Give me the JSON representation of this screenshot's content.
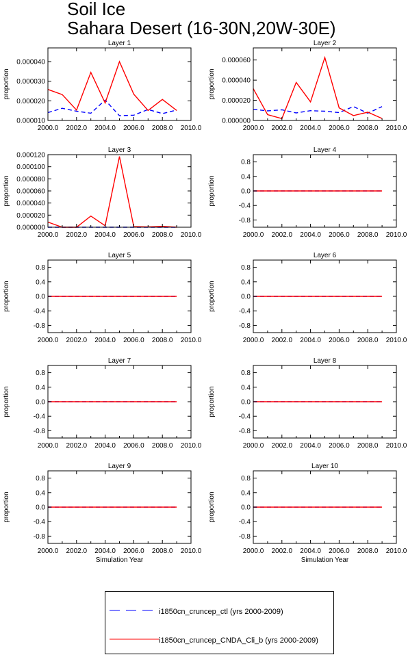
{
  "title_line1": "Soil Ice",
  "title_line2": "Sahara Desert (16-30N,20W-30E)",
  "x_label": "Simulation Year",
  "y_label": "proportion",
  "legend": [
    {
      "label": "i1850cn_cruncep_ctl (yrs 2000-2009)",
      "color": "#0000ff",
      "dash": "dashed"
    },
    {
      "label": "i1850cn_cruncep_CNDA_Cli_b (yrs 2000-2009)",
      "color": "#ff0000",
      "dash": "solid"
    }
  ],
  "chart_data": [
    {
      "type": "line",
      "title": "Layer 1",
      "x": [
        2000,
        2001,
        2002,
        2003,
        2004,
        2005,
        2006,
        2007,
        2008,
        2009
      ],
      "xlim": [
        2000,
        2010
      ],
      "xticks": [
        2000,
        2002,
        2004,
        2006,
        2008,
        2010
      ],
      "xtick_labels": [
        "2000.0",
        "2002.0",
        "2004.0",
        "2006.0",
        "2008.0",
        "2010.0"
      ],
      "ylim": [
        1e-05,
        4.7e-05
      ],
      "yticks": [
        1e-05,
        2e-05,
        3e-05,
        4e-05
      ],
      "ytick_labels": [
        "0.000010",
        "0.000020",
        "0.000030",
        "0.000040"
      ],
      "xlabel": "",
      "ylabel": "proportion",
      "series": [
        {
          "values": [
            1.4e-05,
            1.62e-05,
            1.47e-05,
            1.37e-05,
            2.04e-05,
            1.24e-05,
            1.27e-05,
            1.56e-05,
            1.35e-05,
            1.53e-05
          ]
        },
        {
          "values": [
            2.58e-05,
            2.32e-05,
            1.53e-05,
            3.45e-05,
            1.89e-05,
            4e-05,
            2.34e-05,
            1.51e-05,
            2.07e-05,
            1.51e-05
          ]
        }
      ]
    },
    {
      "type": "line",
      "title": "Layer 2",
      "x": [
        2000,
        2001,
        2002,
        2003,
        2004,
        2005,
        2006,
        2007,
        2008,
        2009
      ],
      "xlim": [
        2000,
        2010
      ],
      "xticks": [
        2000,
        2002,
        2004,
        2006,
        2008,
        2010
      ],
      "xtick_labels": [
        "2000.0",
        "2002.0",
        "2004.0",
        "2006.0",
        "2008.0",
        "2010.0"
      ],
      "ylim": [
        0,
        7.2e-05
      ],
      "yticks": [
        0,
        2e-05,
        4e-05,
        6e-05
      ],
      "ytick_labels": [
        "0.000000",
        "0.000020",
        "0.000040",
        "0.000060"
      ],
      "xlabel": "",
      "ylabel": "proportion",
      "series": [
        {
          "values": [
            1.1e-05,
            9.5e-06,
            1.05e-05,
            7.5e-06,
            9.7e-06,
            9.2e-06,
            7.8e-06,
            1.38e-05,
            7.2e-06,
            1.38e-05
          ]
        },
        {
          "values": [
            3.15e-05,
            5.8e-06,
            1.8e-06,
            3.78e-05,
            1.85e-05,
            6.25e-05,
            1.25e-05,
            4.8e-06,
            8.2e-06,
            2e-06
          ]
        }
      ]
    },
    {
      "type": "line",
      "title": "Layer 3",
      "x": [
        2000,
        2001,
        2002,
        2003,
        2004,
        2005,
        2006,
        2007,
        2008,
        2009
      ],
      "xlim": [
        2000,
        2010
      ],
      "xticks": [
        2000,
        2002,
        2004,
        2006,
        2008,
        2010
      ],
      "xtick_labels": [
        "2000.0",
        "2002.0",
        "2004.0",
        "2006.0",
        "2008.0",
        "2010.0"
      ],
      "ylim": [
        0,
        0.00012
      ],
      "yticks": [
        0,
        2e-05,
        4e-05,
        6e-05,
        8e-05,
        0.0001,
        0.00012
      ],
      "ytick_labels": [
        "0.000000",
        "0.000020",
        "0.000040",
        "0.000060",
        "0.000080",
        "0.000100",
        "0.000120"
      ],
      "xlabel": "",
      "ylabel": "proportion",
      "series": [
        {
          "values": [
            0,
            0,
            0,
            0,
            0,
            0,
            0,
            0,
            0,
            0
          ]
        },
        {
          "values": [
            8.5e-06,
            0,
            0,
            1.85e-05,
            2.5e-06,
            0.000117,
            1e-06,
            5e-07,
            1.5e-06,
            0
          ]
        }
      ]
    },
    {
      "type": "line",
      "title": "Layer 4",
      "x": [
        2000,
        2001,
        2002,
        2003,
        2004,
        2005,
        2006,
        2007,
        2008,
        2009
      ],
      "xlim": [
        2000,
        2010
      ],
      "xticks": [
        2000,
        2002,
        2004,
        2006,
        2008,
        2010
      ],
      "xtick_labels": [
        "2000.0",
        "2002.0",
        "2004.0",
        "2006.0",
        "2008.0",
        "2010.0"
      ],
      "ylim": [
        -1,
        1
      ],
      "yticks": [
        -0.8,
        -0.4,
        0,
        0.4,
        0.8
      ],
      "ytick_labels": [
        "-0.8",
        "-0.4",
        "0.0",
        "0.4",
        "0.8"
      ],
      "xlabel": "",
      "ylabel": "proportion",
      "series": [
        {
          "values": [
            0,
            0,
            0,
            0,
            0,
            0,
            0,
            0,
            0,
            0
          ]
        },
        {
          "values": [
            0,
            0,
            0,
            0,
            0,
            0,
            0,
            0,
            0,
            0
          ]
        }
      ]
    },
    {
      "type": "line",
      "title": "Layer 5",
      "x": [
        2000,
        2001,
        2002,
        2003,
        2004,
        2005,
        2006,
        2007,
        2008,
        2009
      ],
      "xlim": [
        2000,
        2010
      ],
      "xticks": [
        2000,
        2002,
        2004,
        2006,
        2008,
        2010
      ],
      "xtick_labels": [
        "2000.0",
        "2002.0",
        "2004.0",
        "2006.0",
        "2008.0",
        "2010.0"
      ],
      "ylim": [
        -1,
        1
      ],
      "yticks": [
        -0.8,
        -0.4,
        0,
        0.4,
        0.8
      ],
      "ytick_labels": [
        "-0.8",
        "-0.4",
        "0.0",
        "0.4",
        "0.8"
      ],
      "xlabel": "",
      "ylabel": "proportion",
      "series": [
        {
          "values": [
            0,
            0,
            0,
            0,
            0,
            0,
            0,
            0,
            0,
            0
          ]
        },
        {
          "values": [
            0,
            0,
            0,
            0,
            0,
            0,
            0,
            0,
            0,
            0
          ]
        }
      ]
    },
    {
      "type": "line",
      "title": "Layer 6",
      "x": [
        2000,
        2001,
        2002,
        2003,
        2004,
        2005,
        2006,
        2007,
        2008,
        2009
      ],
      "xlim": [
        2000,
        2010
      ],
      "xticks": [
        2000,
        2002,
        2004,
        2006,
        2008,
        2010
      ],
      "xtick_labels": [
        "2000.0",
        "2002.0",
        "2004.0",
        "2006.0",
        "2008.0",
        "2010.0"
      ],
      "ylim": [
        -1,
        1
      ],
      "yticks": [
        -0.8,
        -0.4,
        0,
        0.4,
        0.8
      ],
      "ytick_labels": [
        "-0.8",
        "-0.4",
        "0.0",
        "0.4",
        "0.8"
      ],
      "xlabel": "",
      "ylabel": "proportion",
      "series": [
        {
          "values": [
            0,
            0,
            0,
            0,
            0,
            0,
            0,
            0,
            0,
            0
          ]
        },
        {
          "values": [
            0,
            0,
            0,
            0,
            0,
            0,
            0,
            0,
            0,
            0
          ]
        }
      ]
    },
    {
      "type": "line",
      "title": "Layer 7",
      "x": [
        2000,
        2001,
        2002,
        2003,
        2004,
        2005,
        2006,
        2007,
        2008,
        2009
      ],
      "xlim": [
        2000,
        2010
      ],
      "xticks": [
        2000,
        2002,
        2004,
        2006,
        2008,
        2010
      ],
      "xtick_labels": [
        "2000.0",
        "2002.0",
        "2004.0",
        "2006.0",
        "2008.0",
        "2010.0"
      ],
      "ylim": [
        -1,
        1
      ],
      "yticks": [
        -0.8,
        -0.4,
        0,
        0.4,
        0.8
      ],
      "ytick_labels": [
        "-0.8",
        "-0.4",
        "0.0",
        "0.4",
        "0.8"
      ],
      "xlabel": "",
      "ylabel": "proportion",
      "series": [
        {
          "values": [
            0,
            0,
            0,
            0,
            0,
            0,
            0,
            0,
            0,
            0
          ]
        },
        {
          "values": [
            0,
            0,
            0,
            0,
            0,
            0,
            0,
            0,
            0,
            0
          ]
        }
      ]
    },
    {
      "type": "line",
      "title": "Layer 8",
      "x": [
        2000,
        2001,
        2002,
        2003,
        2004,
        2005,
        2006,
        2007,
        2008,
        2009
      ],
      "xlim": [
        2000,
        2010
      ],
      "xticks": [
        2000,
        2002,
        2004,
        2006,
        2008,
        2010
      ],
      "xtick_labels": [
        "2000.0",
        "2002.0",
        "2004.0",
        "2006.0",
        "2008.0",
        "2010.0"
      ],
      "ylim": [
        -1,
        1
      ],
      "yticks": [
        -0.8,
        -0.4,
        0,
        0.4,
        0.8
      ],
      "ytick_labels": [
        "-0.8",
        "-0.4",
        "0.0",
        "0.4",
        "0.8"
      ],
      "xlabel": "",
      "ylabel": "proportion",
      "series": [
        {
          "values": [
            0,
            0,
            0,
            0,
            0,
            0,
            0,
            0,
            0,
            0
          ]
        },
        {
          "values": [
            0,
            0,
            0,
            0,
            0,
            0,
            0,
            0,
            0,
            0
          ]
        }
      ]
    },
    {
      "type": "line",
      "title": "Layer 9",
      "x": [
        2000,
        2001,
        2002,
        2003,
        2004,
        2005,
        2006,
        2007,
        2008,
        2009
      ],
      "xlim": [
        2000,
        2010
      ],
      "xticks": [
        2000,
        2002,
        2004,
        2006,
        2008,
        2010
      ],
      "xtick_labels": [
        "2000.0",
        "2002.0",
        "2004.0",
        "2006.0",
        "2008.0",
        "2010.0"
      ],
      "ylim": [
        -1,
        1
      ],
      "yticks": [
        -0.8,
        -0.4,
        0,
        0.4,
        0.8
      ],
      "ytick_labels": [
        "-0.8",
        "-0.4",
        "0.0",
        "0.4",
        "0.8"
      ],
      "xlabel": "Simulation Year",
      "ylabel": "proportion",
      "series": [
        {
          "values": [
            0,
            0,
            0,
            0,
            0,
            0,
            0,
            0,
            0,
            0
          ]
        },
        {
          "values": [
            0,
            0,
            0,
            0,
            0,
            0,
            0,
            0,
            0,
            0
          ]
        }
      ]
    },
    {
      "type": "line",
      "title": "Layer 10",
      "x": [
        2000,
        2001,
        2002,
        2003,
        2004,
        2005,
        2006,
        2007,
        2008,
        2009
      ],
      "xlim": [
        2000,
        2010
      ],
      "xticks": [
        2000,
        2002,
        2004,
        2006,
        2008,
        2010
      ],
      "xtick_labels": [
        "2000.0",
        "2002.0",
        "2004.0",
        "2006.0",
        "2008.0",
        "2010.0"
      ],
      "ylim": [
        -1,
        1
      ],
      "yticks": [
        -0.8,
        -0.4,
        0,
        0.4,
        0.8
      ],
      "ytick_labels": [
        "-0.8",
        "-0.4",
        "0.0",
        "0.4",
        "0.8"
      ],
      "xlabel": "Simulation Year",
      "ylabel": "proportion",
      "series": [
        {
          "values": [
            0,
            0,
            0,
            0,
            0,
            0,
            0,
            0,
            0,
            0
          ]
        },
        {
          "values": [
            0,
            0,
            0,
            0,
            0,
            0,
            0,
            0,
            0,
            0
          ]
        }
      ]
    }
  ]
}
